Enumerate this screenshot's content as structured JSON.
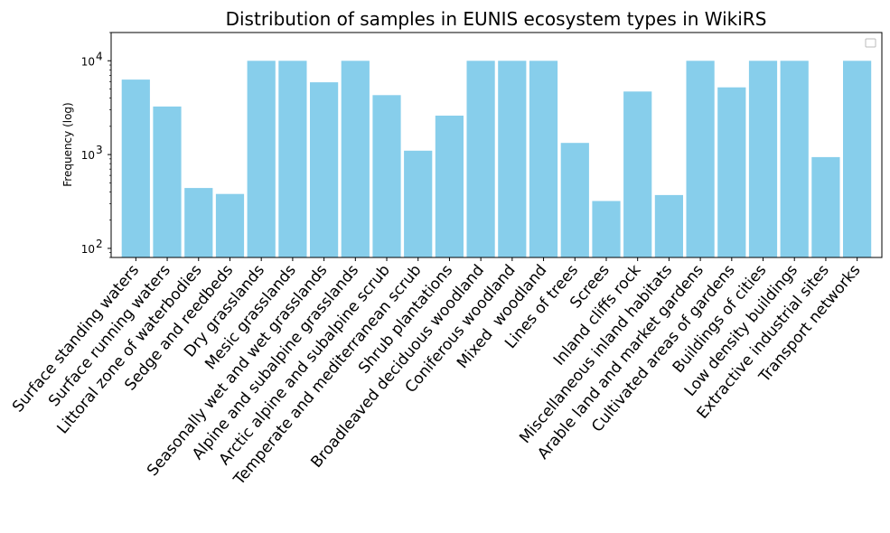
{
  "chart_data": {
    "type": "bar",
    "title": "Distribution of samples in EUNIS ecosystem types in WikiRS",
    "xlabel": "",
    "ylabel": "Frequency (log)",
    "yscale": "log",
    "ylim": [
      80,
      20000
    ],
    "yticks": [
      {
        "value": 100,
        "base": "10",
        "exp": "2"
      },
      {
        "value": 1000,
        "base": "10",
        "exp": "3"
      },
      {
        "value": 10000,
        "base": "10",
        "exp": "4"
      }
    ],
    "bar_color": "#87ceeb",
    "legend": "upper-right (empty)",
    "grid": false,
    "categories": [
      "Surface standing waters",
      "Surface running waters",
      "Littoral zone of waterbodies",
      "Sedge and reedbeds",
      "Dry grasslands",
      "Mesic grasslands",
      "Seasonally wet and wet grasslands",
      "Alpine and subalpine grasslands",
      "Arctic alpine and subalpine scrub",
      "Temperate and mediterranean scrub",
      "Shrub plantations",
      "Broadleaved deciduous woodland",
      "Coniferous woodland",
      "Mixed  woodland",
      "Lines of trees",
      "Screes",
      "Inland cliffs rock",
      "Miscellaneous inland habitats",
      "Arable land and market gardens",
      "Cultivated areas of gardens",
      "Buildings of cities",
      "Low density buildings",
      "Extractive industrial sites",
      "Transport networks"
    ],
    "values": [
      6300,
      3250,
      440,
      380,
      10000,
      10000,
      5900,
      10000,
      4300,
      1100,
      2600,
      10000,
      10000,
      10000,
      1330,
      320,
      4700,
      370,
      10000,
      5200,
      10000,
      10000,
      940,
      10000
    ]
  }
}
